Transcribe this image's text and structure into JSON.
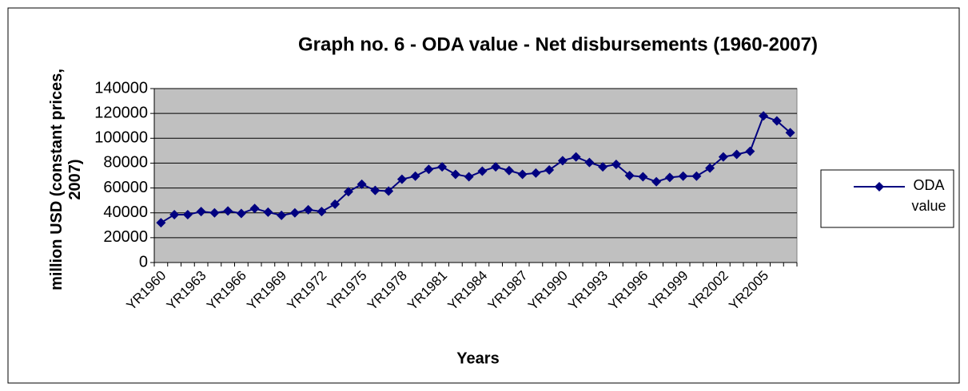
{
  "chart_data": {
    "type": "line",
    "title": "Graph no. 6 - ODA value - Net disbursements (1960-2007)",
    "x_label": "Years",
    "y_label": "million USD (constant prices, 2007)",
    "categories": [
      "YR1960",
      null,
      null,
      "YR1963",
      null,
      null,
      "YR1966",
      null,
      null,
      "YR1969",
      null,
      null,
      "YR1972",
      null,
      null,
      "YR1975",
      null,
      null,
      "YR1978",
      null,
      null,
      "YR1981",
      null,
      null,
      "YR1984",
      null,
      null,
      "YR1987",
      null,
      null,
      "YR1990",
      null,
      null,
      "YR1993",
      null,
      null,
      "YR1996",
      null,
      null,
      "YR1999",
      null,
      null,
      "YR2002",
      null,
      null,
      "YR2005",
      null,
      null
    ],
    "series": [
      {
        "name": "ODA value",
        "color": "#000080",
        "values": [
          32000,
          38500,
          38500,
          41000,
          40000,
          41500,
          39500,
          43500,
          40500,
          38000,
          40000,
          42500,
          41000,
          47000,
          57000,
          63000,
          58000,
          57500,
          67000,
          69500,
          75000,
          77000,
          71000,
          69000,
          73500,
          77000,
          74000,
          71000,
          72000,
          74500,
          82000,
          85000,
          80500,
          77000,
          79000,
          70000,
          69000,
          65000,
          68500,
          69500,
          69500,
          76000,
          85000,
          87000,
          89500,
          118000,
          114000,
          104500
        ]
      }
    ],
    "ylim": [
      0,
      140000
    ],
    "yticks": [
      0,
      20000,
      40000,
      60000,
      80000,
      100000,
      120000,
      140000
    ],
    "grid": true,
    "legend": "right"
  }
}
